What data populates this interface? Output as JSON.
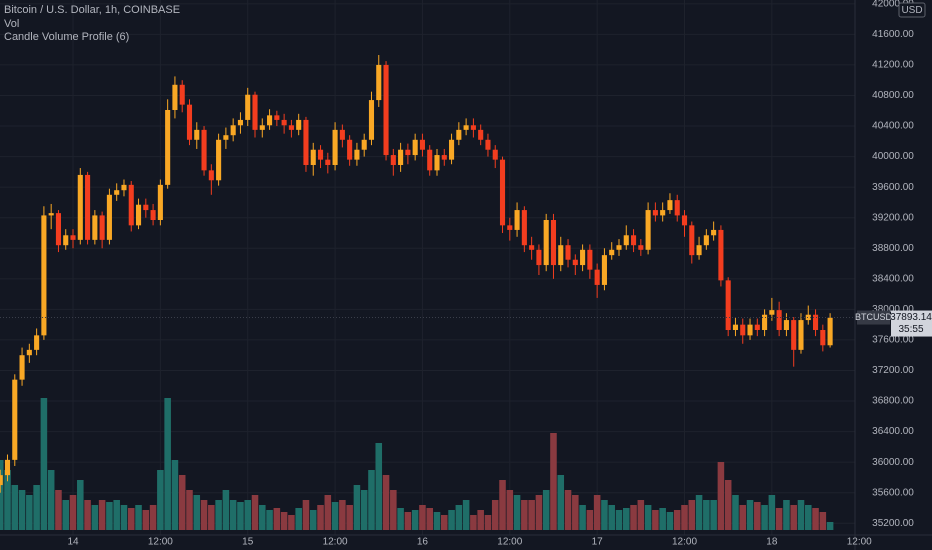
{
  "chart_data": {
    "type": "candlestick",
    "title": "Bitcoin / U.S. Dollar, 1h, COINBASE",
    "indicators": [
      "Vol",
      "Candle Volume Profile (6)"
    ],
    "currency": "USD",
    "open": [
      35700,
      35830,
      36030,
      37080,
      37400,
      37470,
      37660,
      39230,
      39260,
      38840,
      38970,
      38910,
      39760,
      38910,
      39230,
      38910,
      39500,
      39560,
      39630,
      39100,
      39370,
      39300,
      39170,
      39630,
      40610,
      40940,
      40680,
      40220,
      40350,
      39820,
      39690,
      40220,
      40280,
      40410,
      40480,
      40810,
      40350,
      40410,
      40540,
      40480,
      40410,
      40350,
      40480,
      39890,
      40090,
      39960,
      39890,
      40350,
      40220,
      39960,
      40090,
      40220,
      40740,
      41200,
      40020,
      39890,
      40090,
      40020,
      40220,
      40090,
      39820,
      40020,
      39960,
      40220,
      40350,
      40410,
      40350,
      40220,
      40090,
      39960,
      39100,
      39040,
      39300,
      38840,
      38780,
      38580,
      39170,
      38580,
      38840,
      38650,
      38580,
      38780,
      38520,
      38320,
      38710,
      38780,
      38840,
      38970,
      38840,
      38780,
      39300,
      39230,
      39300,
      39430,
      39230,
      39100,
      38710,
      38840,
      38970,
      39040,
      38380,
      37730,
      37800,
      37660,
      37800,
      37730,
      37930,
      37990,
      37730,
      37860,
      37470,
      37860,
      37930,
      37730,
      37530
    ],
    "high": [
      35900,
      36100,
      37150,
      37500,
      37550,
      37750,
      39350,
      39380,
      39300,
      39050,
      39050,
      39850,
      39800,
      39300,
      39280,
      39580,
      39650,
      39700,
      39680,
      39450,
      39450,
      39380,
      39700,
      40750,
      41050,
      41000,
      40750,
      40450,
      40400,
      39900,
      40300,
      40380,
      40500,
      40580,
      40900,
      40850,
      40500,
      40620,
      40600,
      40560,
      40480,
      40560,
      40520,
      40180,
      40150,
      40050,
      40450,
      40420,
      40280,
      40180,
      40300,
      40850,
      41330,
      41250,
      40100,
      40180,
      40170,
      40300,
      40300,
      40150,
      40100,
      40100,
      40300,
      40450,
      40500,
      40500,
      40420,
      40300,
      40150,
      40000,
      39200,
      39400,
      39350,
      38950,
      38850,
      39250,
      39250,
      38950,
      38920,
      38720,
      38850,
      38850,
      38600,
      38800,
      38880,
      38920,
      39100,
      39050,
      38920,
      39400,
      39400,
      39400,
      39520,
      39500,
      39300,
      39150,
      38950,
      39050,
      39150,
      39100,
      38420,
      37900,
      37880,
      37880,
      37880,
      38000,
      38150,
      38100,
      37950,
      37900,
      37950,
      38050,
      38000,
      37800,
      37950
    ],
    "low": [
      35600,
      35750,
      35950,
      37000,
      37300,
      37400,
      37600,
      39050,
      38750,
      38780,
      38800,
      38850,
      38850,
      38850,
      38800,
      38850,
      39420,
      39480,
      39020,
      39050,
      39200,
      39100,
      39100,
      39580,
      40500,
      40580,
      40150,
      40100,
      39750,
      39500,
      39620,
      40100,
      40200,
      40300,
      40400,
      40250,
      40250,
      40350,
      40400,
      40300,
      40250,
      40280,
      39800,
      39750,
      39850,
      39780,
      39820,
      40120,
      39880,
      39880,
      40000,
      40150,
      40650,
      39950,
      39750,
      39800,
      39900,
      39950,
      40000,
      39750,
      39750,
      39880,
      39900,
      40150,
      40280,
      40250,
      40150,
      40000,
      39850,
      39000,
      38900,
      38950,
      38750,
      38650,
      38450,
      38500,
      38400,
      38500,
      38550,
      38450,
      38500,
      38400,
      38150,
      38250,
      38650,
      38700,
      38780,
      38750,
      38700,
      38720,
      39150,
      39150,
      39250,
      39150,
      38950,
      38600,
      38650,
      38780,
      38900,
      38300,
      37650,
      37650,
      37550,
      37600,
      37650,
      37650,
      37850,
      37650,
      37650,
      37250,
      37420,
      37800,
      37650,
      37450,
      37500
    ],
    "close": [
      35830,
      36030,
      37080,
      37400,
      37470,
      37660,
      39230,
      39260,
      38840,
      38970,
      38910,
      39760,
      38910,
      39230,
      38910,
      39500,
      39560,
      39630,
      39100,
      39370,
      39300,
      39170,
      39630,
      40610,
      40940,
      40680,
      40220,
      40350,
      39820,
      39690,
      40220,
      40280,
      40410,
      40480,
      40810,
      40350,
      40410,
      40540,
      40480,
      40410,
      40350,
      40480,
      39890,
      40090,
      39960,
      39890,
      40350,
      40220,
      39960,
      40090,
      40220,
      40740,
      41200,
      40020,
      39890,
      40090,
      40020,
      40220,
      40090,
      39820,
      40020,
      39960,
      40220,
      40350,
      40410,
      40350,
      40220,
      40090,
      39960,
      39100,
      39040,
      39300,
      38840,
      38780,
      38580,
      39170,
      38580,
      38840,
      38650,
      38580,
      38780,
      38520,
      38320,
      38710,
      38780,
      38840,
      38970,
      38840,
      38780,
      39300,
      39230,
      39300,
      39430,
      39230,
      39100,
      38710,
      38840,
      38970,
      39040,
      38380,
      37730,
      37800,
      37660,
      37800,
      37730,
      37930,
      37990,
      37730,
      37860,
      37470,
      37860,
      37930,
      37730,
      37530,
      37890
    ],
    "volume": [
      70,
      60,
      45,
      40,
      35,
      45,
      132,
      60,
      40,
      30,
      35,
      50,
      30,
      25,
      30,
      28,
      30,
      25,
      22,
      25,
      20,
      25,
      60,
      132,
      70,
      55,
      40,
      35,
      30,
      25,
      30,
      40,
      30,
      28,
      30,
      35,
      25,
      20,
      22,
      18,
      15,
      22,
      30,
      20,
      25,
      35,
      28,
      30,
      25,
      45,
      40,
      60,
      87,
      55,
      40,
      22,
      18,
      20,
      25,
      22,
      18,
      15,
      20,
      25,
      30,
      15,
      20,
      15,
      30,
      50,
      40,
      35,
      30,
      30,
      35,
      40,
      97,
      55,
      40,
      35,
      25,
      20,
      35,
      30,
      25,
      20,
      22,
      25,
      30,
      25,
      20,
      22,
      18,
      20,
      25,
      30,
      35,
      30,
      30,
      68,
      50,
      35,
      25,
      30,
      28,
      25,
      35,
      22,
      30,
      25,
      30,
      25,
      22,
      18,
      8
    ],
    "volume_lim": [
      0,
      140
    ],
    "xlim": [
      -0.03,
      117.42
    ],
    "xticks": [
      {
        "value": 10,
        "label": "14"
      },
      {
        "value": 22,
        "label": "12:00"
      },
      {
        "value": 34,
        "label": "15"
      },
      {
        "value": 46,
        "label": "12:00"
      },
      {
        "value": 58,
        "label": "16"
      },
      {
        "value": 70,
        "label": "12:00"
      },
      {
        "value": 82,
        "label": "17"
      },
      {
        "value": 94,
        "label": "12:00"
      },
      {
        "value": 106,
        "label": "18"
      },
      {
        "value": 118,
        "label": "12:00"
      }
    ],
    "ylim": [
      34850,
      42050
    ],
    "yticks": [
      {
        "value": 35200,
        "label": "35200.00"
      },
      {
        "value": 35600,
        "label": "35600.00"
      },
      {
        "value": 36000,
        "label": "36000.00"
      },
      {
        "value": 36400,
        "label": "36400.00"
      },
      {
        "value": 36800,
        "label": "36800.00"
      },
      {
        "value": 37200,
        "label": "37200.00"
      },
      {
        "value": 37600,
        "label": "37600.00"
      },
      {
        "value": 38000,
        "label": "38000.00"
      },
      {
        "value": 38400,
        "label": "38400.00"
      },
      {
        "value": 38800,
        "label": "38800.00"
      },
      {
        "value": 39200,
        "label": "39200.00"
      },
      {
        "value": 39600,
        "label": "39600.00"
      },
      {
        "value": 40000,
        "label": "40000.00"
      },
      {
        "value": 40400,
        "label": "40400.00"
      },
      {
        "value": 40800,
        "label": "40800.00"
      },
      {
        "value": 41200,
        "label": "41200.00"
      },
      {
        "value": 41600,
        "label": "41600.00"
      },
      {
        "value": 42000,
        "label": "42000.00"
      }
    ],
    "last_symbol": "BTCUSD",
    "last_price": 37893.14,
    "countdown": "35:55",
    "grid": true,
    "up_color": "#f9a825",
    "down_color": "#f33d1f",
    "volume_up_color": "#1f6e68",
    "volume_down_color": "#8a3a40"
  }
}
